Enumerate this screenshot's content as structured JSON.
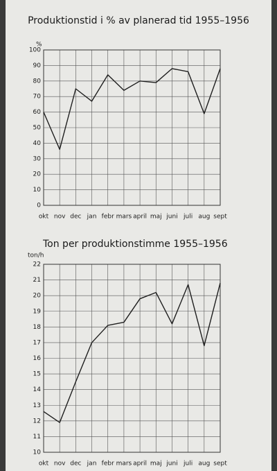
{
  "chart_data": [
    {
      "type": "line",
      "title": "Produktionstid i % av planerad tid   1955–1956",
      "y_label": "%",
      "categories": [
        "okt",
        "nov",
        "dec",
        "jan",
        "febr",
        "mars",
        "april",
        "maj",
        "juni",
        "juli",
        "aug",
        "sept"
      ],
      "series": [
        {
          "name": "Produktionstid",
          "color": "#1e1e1e",
          "values": [
            60,
            36,
            75,
            67,
            84,
            74,
            80,
            79,
            88,
            86,
            59,
            88
          ]
        }
      ],
      "ylim": [
        0,
        100
      ],
      "yticks": [
        0,
        10,
        20,
        30,
        40,
        50,
        60,
        70,
        80,
        90,
        100
      ],
      "grid": true
    },
    {
      "type": "line",
      "title": "Ton per produktionstimme  1955–1956",
      "y_label": "ton/h",
      "categories": [
        "okt",
        "nov",
        "dec",
        "jan",
        "febr",
        "mars",
        "april",
        "maj",
        "juni",
        "juli",
        "aug",
        "sept"
      ],
      "series": [
        {
          "name": "Ton per produktionstimme",
          "color": "#1e1e1e",
          "values": [
            12.6,
            11.9,
            14.5,
            17.0,
            18.1,
            18.3,
            19.8,
            20.2,
            18.2,
            20.7,
            16.8,
            20.8
          ]
        }
      ],
      "ylim": [
        10,
        22
      ],
      "yticks": [
        10,
        11,
        12,
        13,
        14,
        15,
        16,
        17,
        18,
        19,
        20,
        21,
        22
      ],
      "grid": true
    }
  ]
}
